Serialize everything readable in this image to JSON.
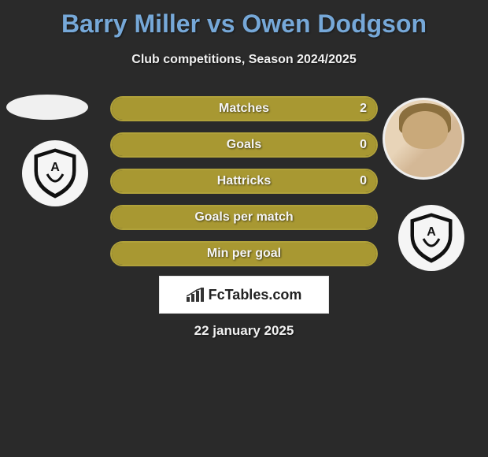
{
  "title": "Barry Miller vs Owen Dodgson",
  "subtitle": "Club competitions, Season 2024/2025",
  "colors": {
    "title": "#76a8d8",
    "accent_border": "#b0a13a",
    "accent_fill": "#a89832",
    "text": "#f5f5f5",
    "background": "#2a2a2a"
  },
  "stats": [
    {
      "label": "Matches",
      "value": "2",
      "fill_pct": 100
    },
    {
      "label": "Goals",
      "value": "0",
      "fill_pct": 100
    },
    {
      "label": "Hattricks",
      "value": "0",
      "fill_pct": 100
    },
    {
      "label": "Goals per match",
      "value": "",
      "fill_pct": 100
    },
    {
      "label": "Min per goal",
      "value": "",
      "fill_pct": 100
    }
  ],
  "branding": {
    "label": "FcTables.com",
    "icon": "chart-bars-icon"
  },
  "date": "22 january 2025"
}
